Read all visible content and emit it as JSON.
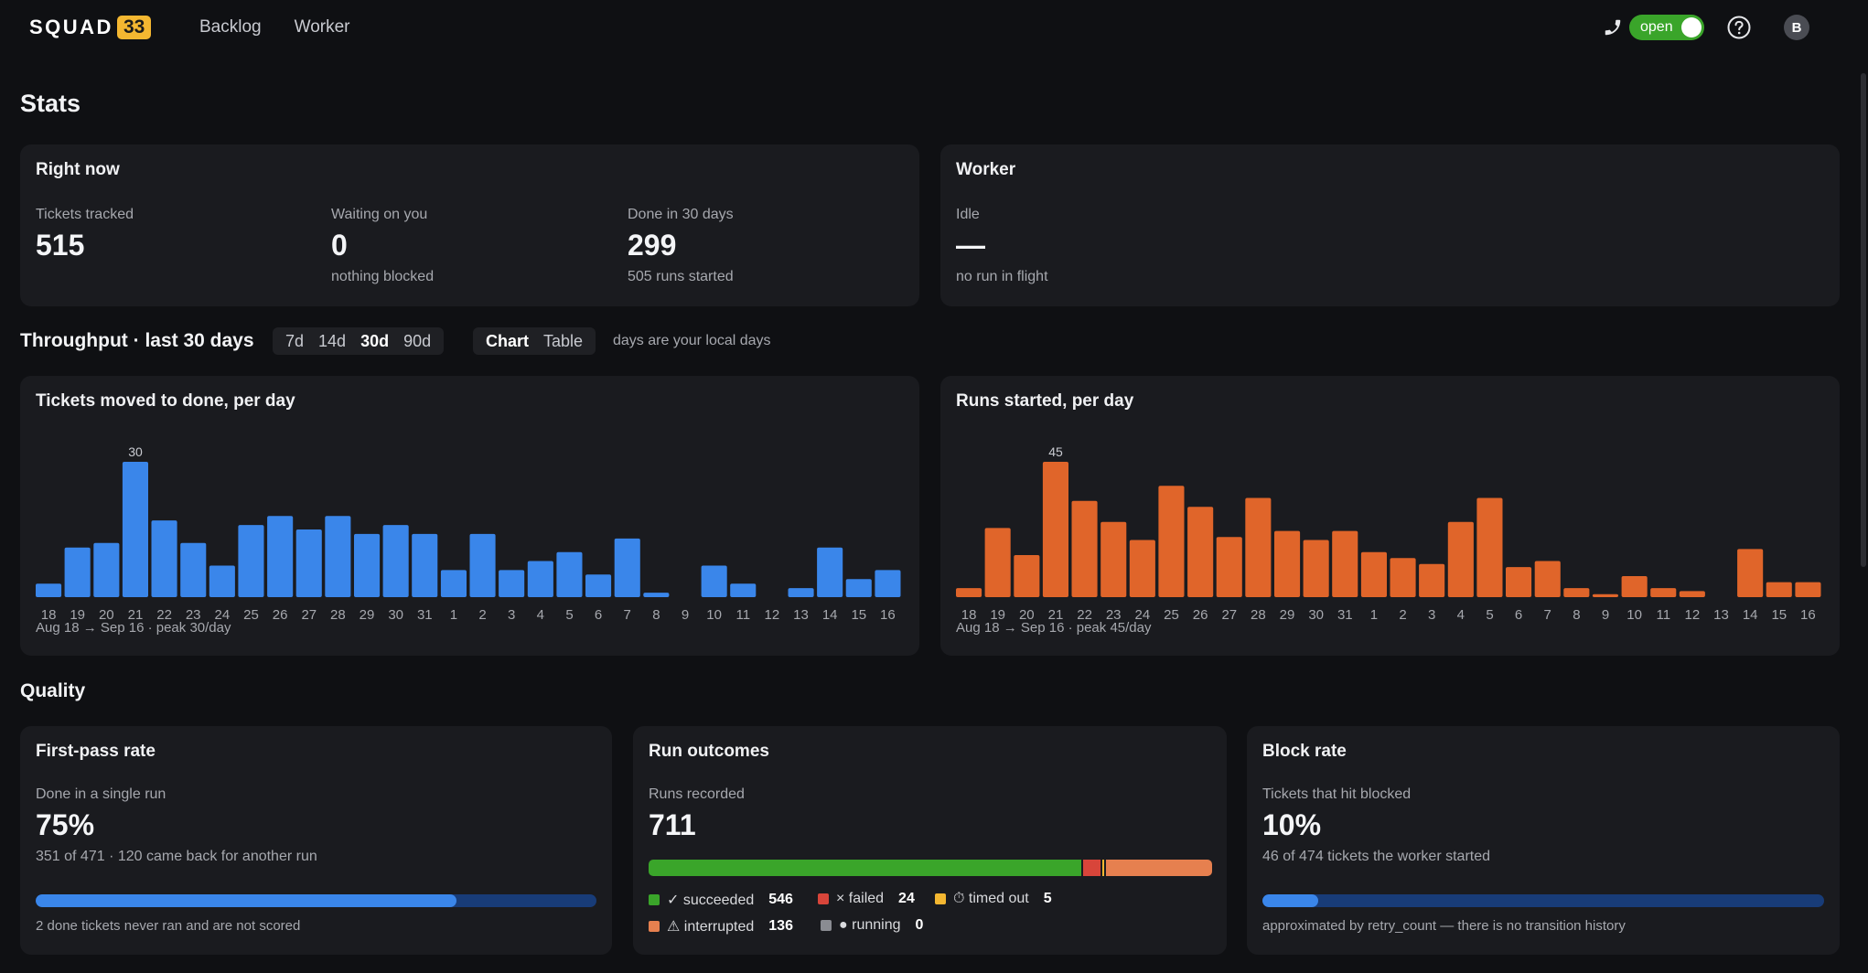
{
  "header": {
    "logo_word": "SQUAD",
    "logo_badge": "33",
    "nav": [
      "Backlog",
      "Worker"
    ],
    "toggle_label": "open",
    "avatar": "B",
    "icons": [
      "phone-icon",
      "help-icon"
    ]
  },
  "page_title": "Stats",
  "right_now": {
    "title": "Right now",
    "tickets_tracked": {
      "label": "Tickets tracked",
      "value": "515"
    },
    "waiting": {
      "label": "Waiting on you",
      "value": "0",
      "sub": "nothing blocked"
    },
    "done": {
      "label": "Done in 30 days",
      "value": "299",
      "sub": "505 runs started"
    }
  },
  "worker": {
    "title": "Worker",
    "label": "Idle",
    "value": "—",
    "sub": "no run in flight"
  },
  "throughput": {
    "title": "Throughput · last 30 days",
    "ranges": [
      "7d",
      "14d",
      "30d",
      "90d"
    ],
    "active_range": "30d",
    "views": [
      "Chart",
      "Table"
    ],
    "active_view": "Chart",
    "hint": "days are your local days"
  },
  "chart_data": [
    {
      "type": "bar",
      "title": "Tickets moved to done, per day",
      "categories": [
        "18",
        "19",
        "20",
        "21",
        "22",
        "23",
        "24",
        "25",
        "26",
        "27",
        "28",
        "29",
        "30",
        "31",
        "1",
        "2",
        "3",
        "4",
        "5",
        "6",
        "7",
        "8",
        "9",
        "10",
        "11",
        "12",
        "13",
        "14",
        "15",
        "16"
      ],
      "values": [
        3,
        11,
        12,
        30,
        17,
        12,
        7,
        16,
        18,
        15,
        18,
        14,
        16,
        14,
        6,
        14,
        6,
        8,
        10,
        5,
        13,
        1,
        0,
        7,
        3,
        0,
        2,
        11,
        4,
        6
      ],
      "peak_label": "30",
      "color": "#3a86ea",
      "footer": "Aug 18 → Sep 16 · peak 30/day"
    },
    {
      "type": "bar",
      "title": "Runs started, per day",
      "categories": [
        "18",
        "19",
        "20",
        "21",
        "22",
        "23",
        "24",
        "25",
        "26",
        "27",
        "28",
        "29",
        "30",
        "31",
        "1",
        "2",
        "3",
        "4",
        "5",
        "6",
        "7",
        "8",
        "9",
        "10",
        "11",
        "12",
        "13",
        "14",
        "15",
        "16"
      ],
      "values": [
        3,
        23,
        14,
        45,
        32,
        25,
        19,
        37,
        30,
        20,
        33,
        22,
        19,
        22,
        15,
        13,
        11,
        25,
        33,
        10,
        12,
        3,
        1,
        7,
        3,
        2,
        0,
        16,
        5,
        5
      ],
      "peak_label": "45",
      "color": "#e0652a",
      "footer": "Aug 18 → Sep 16 · peak 45/day"
    }
  ],
  "quality": {
    "title": "Quality",
    "first_pass": {
      "title": "First-pass rate",
      "label": "Done in a single run",
      "value": "75%",
      "sub": "351 of 471 · 120 came back for another run",
      "fraction": 0.75,
      "footnote": "2 done tickets never ran and are not scored"
    },
    "outcomes": {
      "title": "Run outcomes",
      "label": "Runs recorded",
      "value": "711",
      "items": [
        {
          "name": "✓ succeeded",
          "count": "546",
          "n": 546,
          "color": "#3aa52a"
        },
        {
          "name": "× failed",
          "count": "24",
          "n": 24,
          "color": "#d8453a"
        },
        {
          "name": "⏱ timed out",
          "count": "5",
          "n": 5,
          "color": "#f4b731"
        },
        {
          "name": "⚠ interrupted",
          "count": "136",
          "n": 136,
          "color": "#e6804f"
        },
        {
          "name": "● running",
          "count": "0",
          "n": 0,
          "color": "#8a8c92"
        }
      ]
    },
    "block_rate": {
      "title": "Block rate",
      "label": "Tickets that hit blocked",
      "value": "10%",
      "sub": "46 of 474 tickets the worker started",
      "fraction": 0.1,
      "footnote": "approximated by retry_count — there is no transition history"
    }
  }
}
